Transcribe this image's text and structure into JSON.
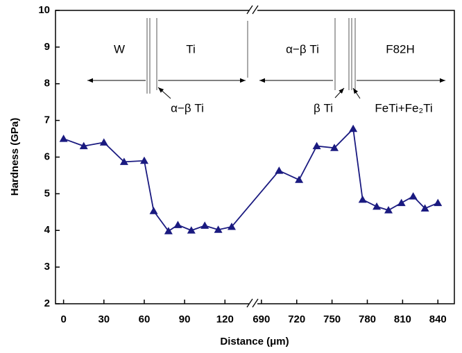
{
  "chart_data": {
    "type": "line",
    "x_label": "Distance (μm)",
    "y_label": "Hardness (GPa)",
    "x_segments": [
      {
        "xlim": [
          -6,
          141
        ],
        "xticks": [
          0,
          30,
          60,
          90,
          120
        ]
      },
      {
        "xlim": [
          683,
          854
        ],
        "xticks": [
          690,
          720,
          750,
          780,
          810,
          840
        ]
      }
    ],
    "ylim": [
      2,
      10
    ],
    "yticks": [
      2,
      3,
      4,
      5,
      6,
      7,
      8,
      9,
      10
    ],
    "annotations": [
      "W",
      "Ti",
      "α−β Ti",
      "F82H",
      "α−β Ti",
      "β Ti",
      "FeTi+Fe₂Ti"
    ],
    "series": [
      {
        "name": "Hardness",
        "color": "#1a1a80",
        "x": [
          0,
          15,
          30,
          45,
          60,
          67,
          78,
          85,
          95,
          105,
          115,
          125,
          705,
          722,
          737,
          752,
          768,
          776,
          788,
          798,
          809,
          819,
          829,
          840
        ],
        "values": [
          6.5,
          6.3,
          6.4,
          5.87,
          5.9,
          4.53,
          3.98,
          4.15,
          4.0,
          4.13,
          4.02,
          4.1,
          5.63,
          5.38,
          6.3,
          6.25,
          6.77,
          4.84,
          4.65,
          4.55,
          4.75,
          4.93,
          4.6,
          4.75
        ]
      }
    ]
  }
}
